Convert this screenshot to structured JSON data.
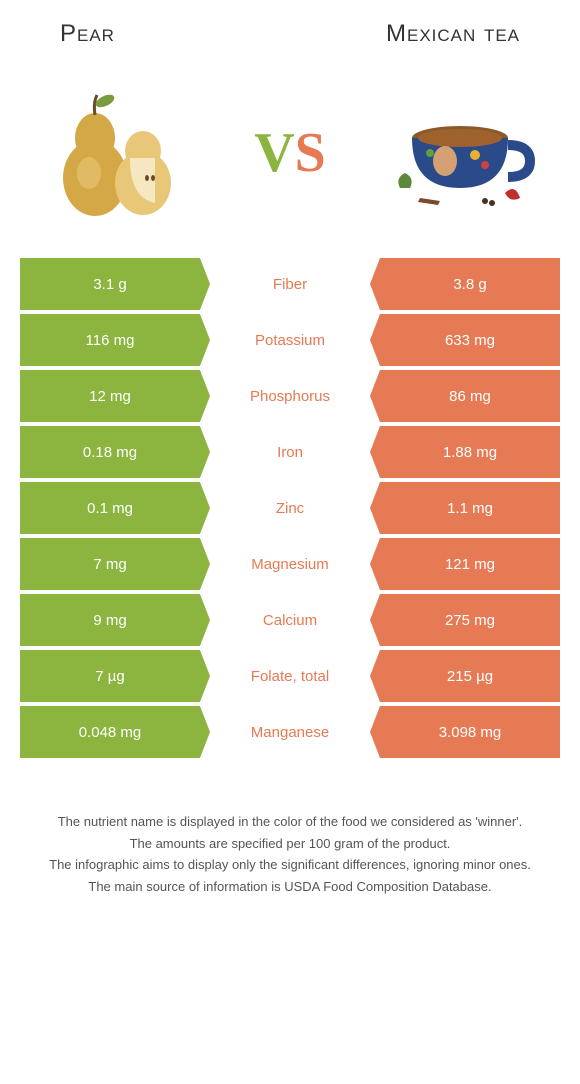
{
  "header": {
    "left": "Pear",
    "right": "Mexican tea"
  },
  "vs": {
    "v": "V",
    "s": "S"
  },
  "colors": {
    "left": "#8bb53f",
    "right": "#e67a54"
  },
  "rows": [
    {
      "left": "3.1 g",
      "label": "Fiber",
      "right": "3.8 g",
      "winner": "right"
    },
    {
      "left": "116 mg",
      "label": "Potassium",
      "right": "633 mg",
      "winner": "right"
    },
    {
      "left": "12 mg",
      "label": "Phosphorus",
      "right": "86 mg",
      "winner": "right"
    },
    {
      "left": "0.18 mg",
      "label": "Iron",
      "right": "1.88 mg",
      "winner": "right"
    },
    {
      "left": "0.1 mg",
      "label": "Zinc",
      "right": "1.1 mg",
      "winner": "right"
    },
    {
      "left": "7 mg",
      "label": "Magnesium",
      "right": "121 mg",
      "winner": "right"
    },
    {
      "left": "9 mg",
      "label": "Calcium",
      "right": "275 mg",
      "winner": "right"
    },
    {
      "left": "7 µg",
      "label": "Folate, total",
      "right": "215 µg",
      "winner": "right"
    },
    {
      "left": "0.048 mg",
      "label": "Manganese",
      "right": "3.098 mg",
      "winner": "right"
    }
  ],
  "footer": {
    "line1": "The nutrient name is displayed in the color of the food we considered as 'winner'.",
    "line2": "The amounts are specified per 100 gram of the product.",
    "line3": "The infographic aims to display only the significant differences, ignoring minor ones.",
    "line4": "The main source of information is USDA Food Composition Database."
  }
}
